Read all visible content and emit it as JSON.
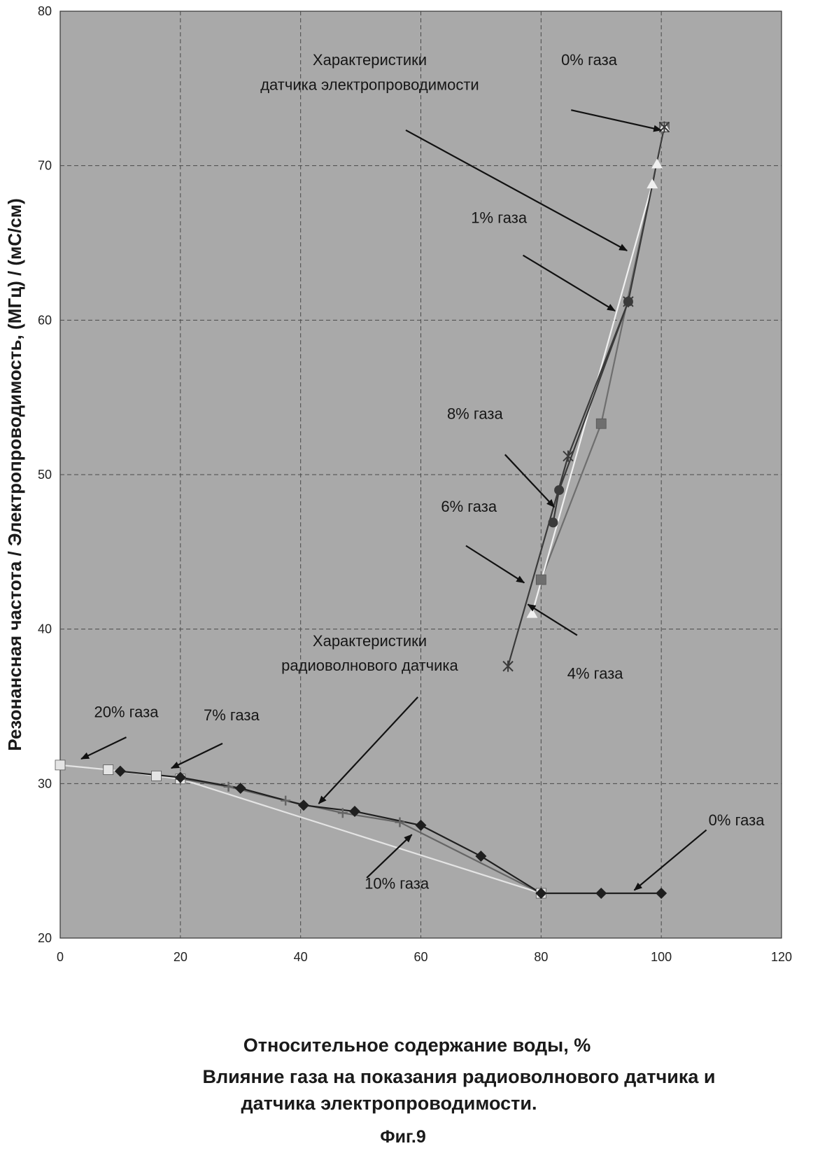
{
  "chart_data": {
    "type": "line",
    "xlabel": "Относительное содержание воды, %",
    "ylabel": "Резонансная частота / Электропроводимость, (МГц) / (мС/см)",
    "subtitle_line1": "Влияние газа на показания радиоволнового датчика и",
    "subtitle_line2": "датчика электропроводимости.",
    "figure_label": "Фиг.9",
    "xlim": [
      0,
      120
    ],
    "ylim": [
      20,
      80
    ],
    "x_ticks": [
      "0",
      "20",
      "40",
      "60",
      "80",
      "100",
      "120"
    ],
    "y_ticks": [
      "20",
      "30",
      "40",
      "50",
      "60",
      "70",
      "80"
    ],
    "grid": true,
    "background": "#a9a9a9",
    "series": [
      {
        "marker": "square",
        "color": "#e4e4e4",
        "points": [
          [
            0,
            31.2
          ],
          [
            8,
            30.9
          ],
          [
            16,
            30.5
          ],
          [
            20,
            30.3
          ],
          [
            80,
            22.9
          ]
        ]
      },
      {
        "marker": "plus",
        "color": "#666666",
        "points": [
          [
            20,
            30.3
          ],
          [
            28,
            29.8
          ],
          [
            37.5,
            28.9
          ],
          [
            47,
            28.1
          ],
          [
            56.5,
            27.5
          ],
          [
            80,
            22.9
          ]
        ]
      },
      {
        "marker": "diamond",
        "color": "#1f1f1f",
        "points": [
          [
            10,
            30.8
          ],
          [
            20,
            30.4
          ],
          [
            30,
            29.7
          ],
          [
            40.5,
            28.6
          ],
          [
            49,
            28.2
          ],
          [
            60,
            27.3
          ],
          [
            70,
            25.3
          ],
          [
            80,
            22.9
          ],
          [
            90,
            22.9
          ],
          [
            100,
            22.9
          ]
        ]
      },
      {
        "marker": "square",
        "color": "#6e6e6e",
        "points": [
          [
            80,
            43.2
          ],
          [
            90,
            53.3
          ],
          [
            100.5,
            72.5
          ]
        ]
      },
      {
        "marker": "triangle",
        "color": "#f0f0f0",
        "points": [
          [
            78.5,
            41
          ],
          [
            98.5,
            68.8
          ],
          [
            99.3,
            70.1
          ],
          [
            100.5,
            72.5
          ]
        ]
      },
      {
        "marker": "circle",
        "color": "#3a3a3a",
        "points": [
          [
            82,
            46.9
          ],
          [
            83,
            49
          ],
          [
            94.5,
            61.2
          ]
        ]
      },
      {
        "marker": "star",
        "color": "#3a3a3a",
        "points": [
          [
            74.5,
            37.6
          ],
          [
            84.5,
            51.2
          ],
          [
            94.5,
            61.2
          ],
          [
            100.5,
            72.5
          ]
        ]
      }
    ],
    "annotations": [
      {
        "text": "Характеристики",
        "x": 51.5,
        "y": 76.5
      },
      {
        "text": "датчика электропроводимости",
        "x": 51.5,
        "y": 74.9
      },
      {
        "text": "0% газа",
        "x": 88,
        "y": 76.5
      },
      {
        "text": "1% газа",
        "x": 73,
        "y": 66.3
      },
      {
        "text": "8% газа",
        "x": 69,
        "y": 53.6
      },
      {
        "text": "6% газа",
        "x": 68,
        "y": 47.6
      },
      {
        "text": "Характеристики",
        "x": 51.5,
        "y": 38.9
      },
      {
        "text": "радиоволнового датчика",
        "x": 51.5,
        "y": 37.3
      },
      {
        "text": "4% газа",
        "x": 89,
        "y": 36.8
      },
      {
        "text": "20% газа",
        "x": 11,
        "y": 34.3
      },
      {
        "text": "7% газа",
        "x": 28.5,
        "y": 34.1
      },
      {
        "text": "0% газа",
        "x": 112.5,
        "y": 27.3
      },
      {
        "text": "10% газа",
        "x": 56,
        "y": 23.2
      }
    ],
    "arrows": [
      {
        "from": [
          85,
          73.6
        ],
        "to": [
          100,
          72.3
        ]
      },
      {
        "from": [
          57.5,
          72.3
        ],
        "to": [
          94.3,
          64.5
        ]
      },
      {
        "from": [
          77,
          64.2
        ],
        "to": [
          92.3,
          60.6
        ]
      },
      {
        "from": [
          74,
          51.3
        ],
        "to": [
          82.2,
          47.9
        ]
      },
      {
        "from": [
          67.5,
          45.4
        ],
        "to": [
          77.2,
          43
        ]
      },
      {
        "from": [
          86,
          39.6
        ],
        "to": [
          77.8,
          41.6
        ]
      },
      {
        "from": [
          59.5,
          35.6
        ],
        "to": [
          43,
          28.7
        ]
      },
      {
        "from": [
          11,
          33
        ],
        "to": [
          3.5,
          31.6
        ]
      },
      {
        "from": [
          27,
          32.6
        ],
        "to": [
          18.5,
          31
        ]
      },
      {
        "from": [
          107.5,
          27
        ],
        "to": [
          95.5,
          23.1
        ]
      },
      {
        "from": [
          51,
          23.9
        ],
        "to": [
          58.5,
          26.7
        ]
      }
    ]
  }
}
